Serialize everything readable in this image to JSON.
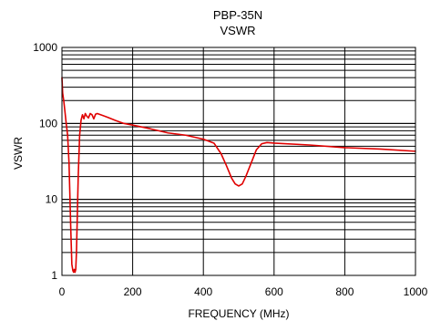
{
  "chart_data": {
    "type": "line",
    "title": "PBP-35N",
    "subtitle": "VSWR",
    "xlabel": "FREQUENCY (MHz)",
    "ylabel": "VSWR",
    "xlim": [
      0,
      1000
    ],
    "ylim": [
      1,
      1000
    ],
    "yscale": "log",
    "grid": true,
    "x_ticks": [
      0,
      200,
      400,
      600,
      800,
      1000
    ],
    "x_tick_labels": [
      "0",
      "200",
      "400",
      "600",
      "800",
      "1000"
    ],
    "y_ticks": [
      1,
      10,
      100,
      1000
    ],
    "y_tick_labels": [
      "1",
      "10",
      "100",
      "1000"
    ],
    "line_color": "#e00000",
    "series": [
      {
        "x": [
          0,
          2,
          5,
          8,
          12,
          16,
          20,
          25,
          28,
          31,
          33,
          35,
          37,
          39,
          41,
          43,
          46,
          50,
          54,
          58,
          62,
          66,
          70,
          75,
          80,
          85,
          90,
          95,
          100,
          110,
          130,
          150,
          175,
          200,
          250,
          300,
          350,
          400,
          430,
          450,
          465,
          480,
          490,
          500,
          510,
          520,
          535,
          550,
          565,
          580,
          600,
          700,
          800,
          900,
          1000
        ],
        "y": [
          400,
          250,
          200,
          150,
          100,
          70,
          30,
          4,
          1.4,
          1.15,
          1.1,
          1.2,
          1.1,
          1.2,
          2,
          5,
          20,
          70,
          110,
          130,
          115,
          135,
          125,
          118,
          135,
          130,
          115,
          132,
          135,
          130,
          120,
          110,
          100,
          95,
          85,
          75,
          70,
          62,
          55,
          40,
          28,
          19,
          16,
          15,
          16,
          20,
          30,
          45,
          54,
          56,
          55,
          52,
          48,
          46,
          43
        ]
      }
    ]
  }
}
